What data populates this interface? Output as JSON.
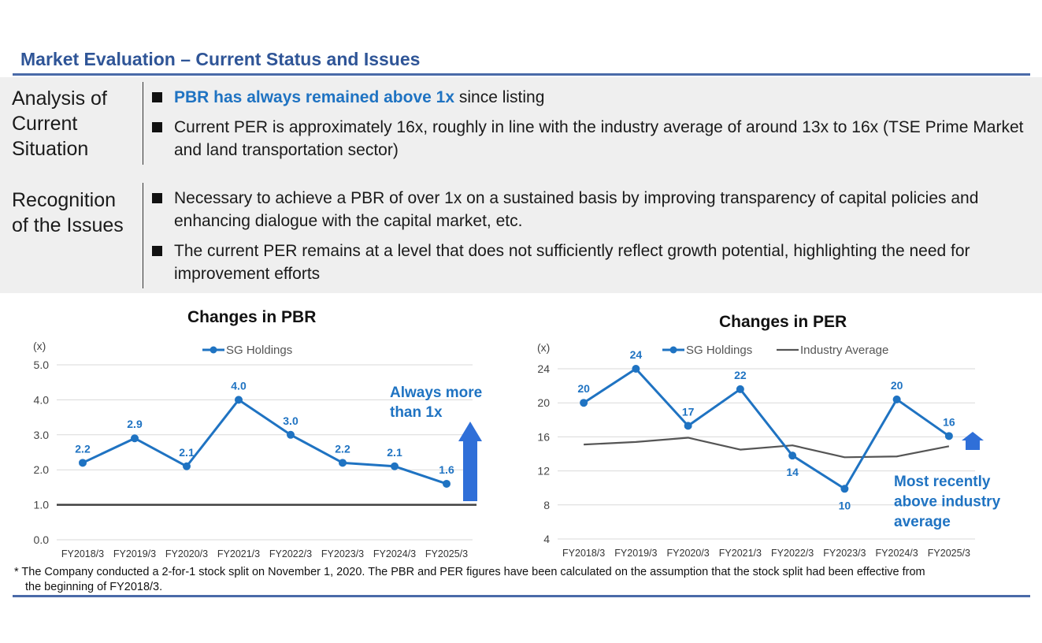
{
  "header": {
    "title": "Market Evaluation – Current Status and Issues"
  },
  "sections": [
    {
      "label_lines": [
        "Analysis of",
        "Current",
        "Situation"
      ],
      "bullets": [
        {
          "highlight": "PBR has always remained above 1x",
          "text": " since listing"
        },
        {
          "highlight": "",
          "text": "Current PER is approximately 16x, roughly in line with the industry average of around 13x to 16x (TSE Prime Market and land transportation sector)"
        }
      ]
    },
    {
      "label_lines": [
        "Recognition",
        "of the Issues"
      ],
      "bullets": [
        {
          "highlight": "",
          "text": "Necessary to achieve a PBR of over 1x on a sustained basis by improving transparency of capital policies and enhancing dialogue with the capital market, etc."
        },
        {
          "highlight": "",
          "text": "The current PER remains at a level that does not sufficiently reflect growth potential, highlighting the need for improvement efforts"
        }
      ]
    }
  ],
  "chart_data": [
    {
      "type": "line",
      "title": "Changes in PBR",
      "unit_label": "(x)",
      "categories": [
        "FY2018/3",
        "FY2019/3",
        "FY2020/3",
        "FY2021/3",
        "FY2022/3",
        "FY2023/3",
        "FY2024/3",
        "FY2025/3"
      ],
      "series": [
        {
          "name": "SG Holdings",
          "values": [
            2.2,
            2.9,
            2.1,
            4.0,
            3.0,
            2.2,
            2.1,
            1.6
          ],
          "labels": [
            "2.2",
            "2.9",
            "2.1",
            "4.0",
            "3.0",
            "2.2",
            "2.1",
            "1.6"
          ],
          "color": "#1f73c2"
        }
      ],
      "reference_line": 1.0,
      "ylim": [
        0,
        5
      ],
      "yticks": [
        "0.0",
        "1.0",
        "2.0",
        "3.0",
        "4.0",
        "5.0"
      ],
      "legend": "top-center",
      "annotation": [
        "Always more",
        "than 1x"
      ]
    },
    {
      "type": "line",
      "title": "Changes in PER",
      "unit_label": "(x)",
      "categories": [
        "FY2018/3",
        "FY2019/3",
        "FY2020/3",
        "FY2021/3",
        "FY2022/3",
        "FY2023/3",
        "FY2024/3",
        "FY2025/3"
      ],
      "series": [
        {
          "name": "SG Holdings",
          "values": [
            20,
            24,
            17.3,
            21.6,
            13.8,
            9.9,
            20.4,
            16.1
          ],
          "labels": [
            "20",
            "24",
            "17",
            "22",
            "14",
            "10",
            "20",
            "16"
          ],
          "color": "#1f73c2"
        },
        {
          "name": "Industry Average",
          "values": [
            15.1,
            15.4,
            15.9,
            14.5,
            15.0,
            13.6,
            13.7,
            14.9
          ],
          "color": "#555555"
        }
      ],
      "ylim": [
        4,
        24
      ],
      "yticks": [
        "4",
        "8",
        "12",
        "16",
        "20",
        "24"
      ],
      "legend": "top-center",
      "annotation": [
        "Most recently",
        "above industry",
        "average"
      ]
    }
  ],
  "footnote": {
    "line1": "* The Company conducted a 2-for-1 stock split on November 1, 2020. The PBR and PER figures have been calculated on the assumption that the stock split had been effective from",
    "line2": "the beginning of FY2018/3."
  },
  "colors": {
    "accent": "#1f73c2",
    "title": "#2f5597",
    "panel": "#efefef",
    "arrow": "#2f6fd8"
  }
}
